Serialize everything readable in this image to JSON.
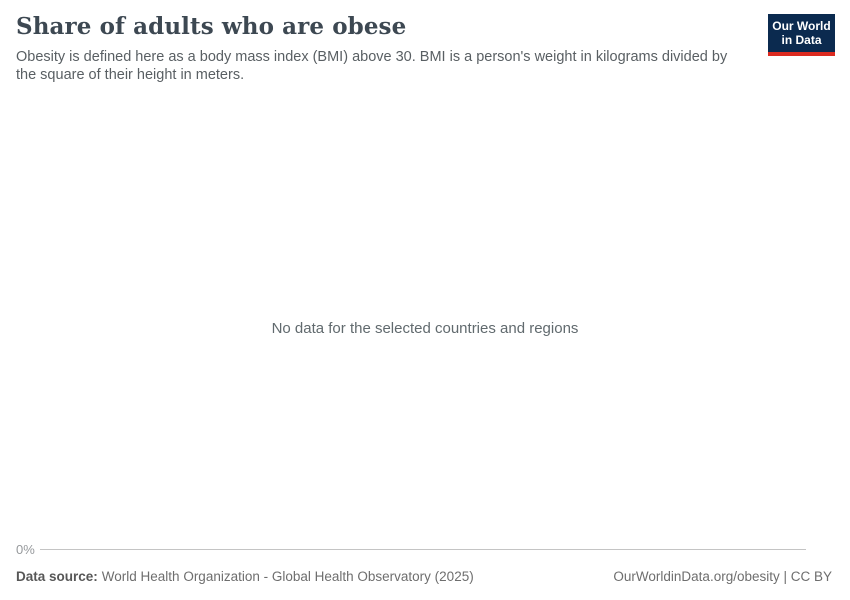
{
  "header": {
    "title": "Share of adults who are obese",
    "subtitle": "Obesity is defined here as a body mass index (BMI) above 30. BMI is a person's weight in kilograms divided by the square of their height in meters.",
    "logo": {
      "line1": "Our World",
      "line2": "in Data"
    }
  },
  "chart": {
    "empty_message": "No data for the selected countries and regions",
    "y_axis": {
      "tick_label": "0%"
    }
  },
  "footer": {
    "data_source_label": "Data source:",
    "data_source_value": "World Health Organization - Global Health Observatory (2025)",
    "attribution": "OurWorldinData.org/obesity | CC BY"
  },
  "colors": {
    "logo_navy": "#0b2a4f",
    "logo_red": "#dc2a20",
    "title_color": "#3d4852",
    "subtitle_color": "#595f63",
    "nodata_color": "#616a6e",
    "tick_color": "#96999c",
    "axis_line_color": "#c4c4c4",
    "footer_color": "#6e6e6e"
  },
  "chart_data": {
    "type": "line",
    "title": "Share of adults who are obese",
    "subtitle": "Obesity is defined here as a body mass index (BMI) above 30. BMI is a person's weight in kilograms divided by the square of their height in meters.",
    "series": [],
    "categories": [],
    "ytick_labels": [
      "0%"
    ],
    "grid": false,
    "legend_position": "none",
    "empty_message": "No data for the selected countries and regions"
  }
}
